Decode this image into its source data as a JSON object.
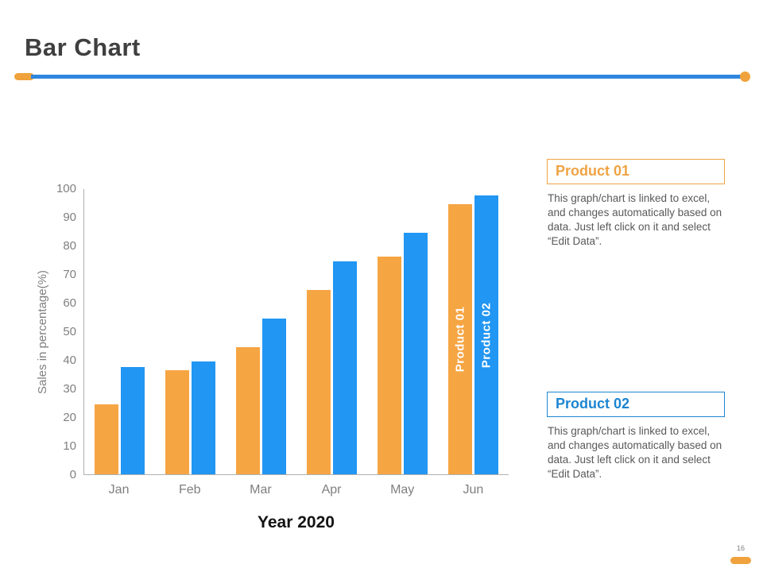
{
  "header": {
    "title": "Bar Chart"
  },
  "chart_data": {
    "type": "bar",
    "categories": [
      "Jan",
      "Feb",
      "Mar",
      "Apr",
      "May",
      "Jun"
    ],
    "series": [
      {
        "name": "Product 01",
        "color": "#F6A543",
        "values": [
          24.5,
          36.5,
          44.5,
          64.5,
          76,
          94.5
        ]
      },
      {
        "name": "Product 02",
        "color": "#2196F3",
        "values": [
          37.5,
          39.5,
          54.5,
          74.5,
          84.5,
          97.5
        ]
      }
    ],
    "title": "",
    "xlabel": "Year 2020",
    "ylabel": "Sales in percentage(%)",
    "ylim": [
      0,
      100
    ],
    "ytick_step": 10,
    "grid": false,
    "legend_position": "labels rotated inside Jun bars",
    "in_bar_labels": {
      "category_index": 5,
      "labels": [
        "Product 01",
        "Product 02"
      ]
    }
  },
  "panels": [
    {
      "title": "Product 01",
      "accent": "#EFA343",
      "body": "This graph/chart is linked to excel, and changes automatically based on data. Just left click on it and select “Edit Data”."
    },
    {
      "title": "Product 02",
      "accent": "#1C86D1",
      "body": "This graph/chart is linked to excel, and changes automatically based on data. Just left click on it and select “Edit Data”."
    }
  ],
  "footer": {
    "page_number": "16"
  },
  "colors": {
    "title_text": "#3F3F3F",
    "divider_line_blue": "#2E86DE",
    "divider_caps_orange": "#F0A23C",
    "bar_orange": "#F6A543",
    "bar_blue": "#2196F3",
    "axis_text": "#7F7F7F",
    "body_text": "#595959",
    "footer_pill": "#F0A23C"
  }
}
